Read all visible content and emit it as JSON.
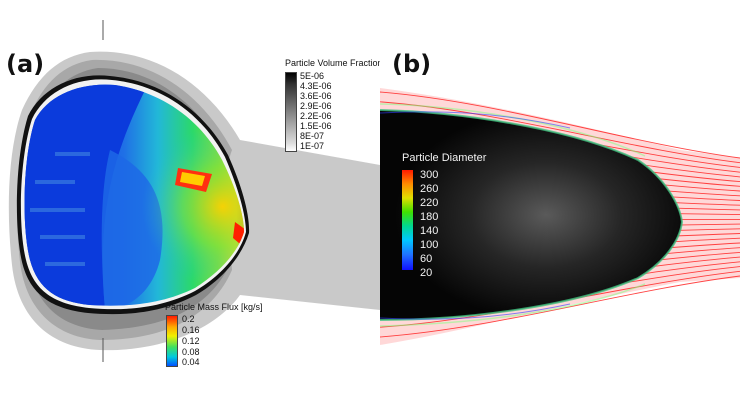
{
  "panel_a": {
    "label": "(a)",
    "volume_fraction_legend": {
      "title": "Particle Volume Fraction",
      "ticks": [
        "5E-06",
        "4.3E-06",
        "3.6E-06",
        "2.9E-06",
        "2.2E-06",
        "1.5E-06",
        "8E-07",
        "1E-07"
      ]
    },
    "mass_flux_legend": {
      "title": "Particle Mass Flux [kg/s]",
      "ticks": [
        "0.2",
        "0.16",
        "0.12",
        "0.08",
        "0.04"
      ]
    }
  },
  "panel_b": {
    "label": "(b)",
    "diameter_legend": {
      "title": "Particle Diameter",
      "ticks": [
        "300",
        "260",
        "220",
        "180",
        "140",
        "100",
        "60",
        "20"
      ]
    }
  },
  "colors": {
    "jet_scale": [
      "#0033ff",
      "#00ccff",
      "#00ff66",
      "#99ff00",
      "#ffff00",
      "#ff8800",
      "#ff0000"
    ],
    "particle_red": "#ff2020",
    "shield_dark": "#050505"
  }
}
